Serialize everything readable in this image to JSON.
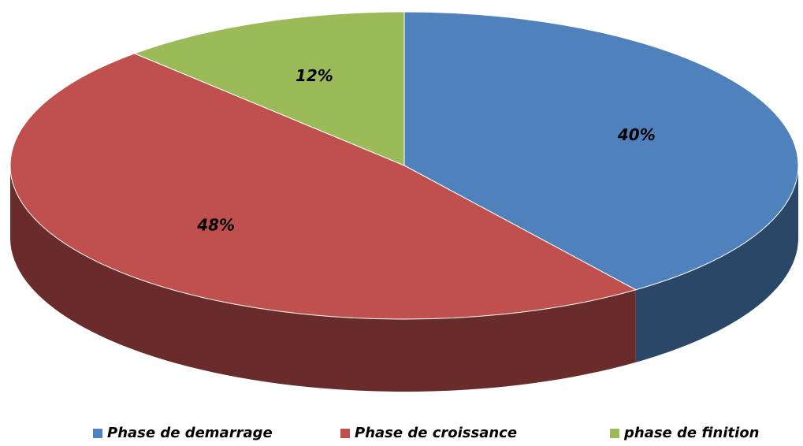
{
  "chart_data": {
    "type": "pie",
    "categories": [
      "Phase de demarrage",
      "Phase de croissance",
      "phase de finition"
    ],
    "values": [
      40,
      48,
      12
    ],
    "value_labels": [
      "40%",
      "48%",
      "12%"
    ],
    "colors": [
      "#4f81bd",
      "#c0504d",
      "#9bbb59"
    ],
    "legend": "bottom"
  }
}
